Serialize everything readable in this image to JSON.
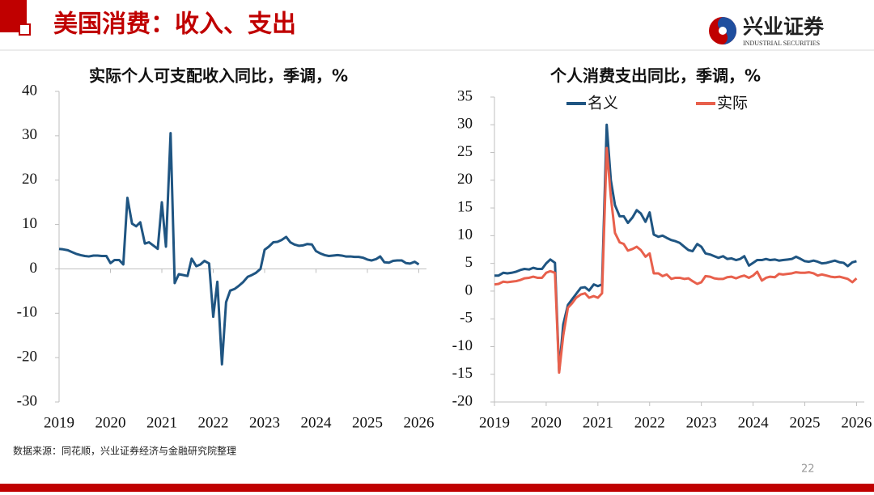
{
  "header": {
    "title": "美国消费：收入、支出"
  },
  "logo": {
    "name": "兴业证券",
    "subtitle": "INDUSTRIAL SECURITIES"
  },
  "source": "数据来源：同花顺，兴业证券经济与金融研究院整理",
  "page_number": "22",
  "chart_data": [
    {
      "type": "line",
      "title": "实际个人可支配收入同比，季调，%",
      "color": "#1f5582",
      "zero_line": true,
      "xlim": [
        2019,
        2026.15
      ],
      "xticks": [
        2019,
        2020,
        2021,
        2022,
        2023,
        2024,
        2025,
        2026
      ],
      "ylim": [
        -30,
        40
      ],
      "yticks": [
        -30,
        -20,
        -10,
        0,
        10,
        20,
        30,
        40
      ],
      "x": [
        2019,
        2019.08,
        2019.17,
        2019.25,
        2019.33,
        2019.42,
        2019.5,
        2019.58,
        2019.67,
        2019.75,
        2019.83,
        2019.92,
        2020,
        2020.08,
        2020.17,
        2020.25,
        2020.33,
        2020.42,
        2020.5,
        2020.58,
        2020.67,
        2020.75,
        2020.83,
        2020.92,
        2021,
        2021.08,
        2021.17,
        2021.25,
        2021.33,
        2021.42,
        2021.5,
        2021.58,
        2021.67,
        2021.75,
        2021.83,
        2021.92,
        2022,
        2022.08,
        2022.17,
        2022.25,
        2022.33,
        2022.42,
        2022.5,
        2022.58,
        2022.67,
        2022.75,
        2022.83,
        2022.92,
        2023,
        2023.08,
        2023.17,
        2023.25,
        2023.33,
        2023.42,
        2023.5,
        2023.58,
        2023.67,
        2023.75,
        2023.83,
        2023.92,
        2024,
        2024.08,
        2024.17,
        2024.25,
        2024.33,
        2024.42,
        2024.5,
        2024.58,
        2024.67,
        2024.75,
        2024.83,
        2024.92,
        2025,
        2025.08,
        2025.17,
        2025.25,
        2025.33,
        2025.42,
        2025.5,
        2025.58,
        2025.67,
        2025.75,
        2025.83,
        2025.92,
        2026
      ],
      "values": [
        4.5,
        4.4,
        4.2,
        3.8,
        3.4,
        3.1,
        2.9,
        2.8,
        3.0,
        3.0,
        2.9,
        2.9,
        1.3,
        2.0,
        2.0,
        1.0,
        16.0,
        10.2,
        9.6,
        10.5,
        5.7,
        6.0,
        5.3,
        4.5,
        15.0,
        5.0,
        30.6,
        -3.2,
        -1.2,
        -1.4,
        -1.6,
        2.3,
        0.6,
        1.0,
        1.8,
        1.2,
        -10.8,
        -2.9,
        -21.5,
        -7.5,
        -4.9,
        -4.5,
        -3.8,
        -3.0,
        -1.8,
        -1.4,
        -0.9,
        0.0,
        4.3,
        5.0,
        6.0,
        6.1,
        6.5,
        7.2,
        6.0,
        5.5,
        5.2,
        5.3,
        5.6,
        5.5,
        4.0,
        3.5,
        3.1,
        2.9,
        3.0,
        3.1,
        3.0,
        2.8,
        2.8,
        2.7,
        2.7,
        2.5,
        2.1,
        1.9,
        2.2,
        2.8,
        1.5,
        1.4,
        1.8,
        1.9,
        1.9,
        1.3,
        1.2,
        1.6,
        1.0
      ]
    },
    {
      "type": "line",
      "title": "个人消费支出同比，季调，%",
      "zero_line": false,
      "xlim": [
        2019,
        2026.15
      ],
      "xticks": [
        2019,
        2020,
        2021,
        2022,
        2023,
        2024,
        2025,
        2026
      ],
      "ylim": [
        -20,
        35
      ],
      "yticks": [
        -20,
        -15,
        -10,
        -5,
        0,
        5,
        10,
        15,
        20,
        25,
        30,
        35
      ],
      "x": [
        2019,
        2019.08,
        2019.17,
        2019.25,
        2019.33,
        2019.42,
        2019.5,
        2019.58,
        2019.67,
        2019.75,
        2019.83,
        2019.92,
        2020,
        2020.08,
        2020.17,
        2020.25,
        2020.33,
        2020.42,
        2020.5,
        2020.58,
        2020.67,
        2020.75,
        2020.83,
        2020.92,
        2021,
        2021.08,
        2021.17,
        2021.25,
        2021.33,
        2021.42,
        2021.5,
        2021.58,
        2021.67,
        2021.75,
        2021.83,
        2021.92,
        2022,
        2022.08,
        2022.17,
        2022.25,
        2022.33,
        2022.42,
        2022.5,
        2022.58,
        2022.67,
        2022.75,
        2022.83,
        2022.92,
        2023,
        2023.08,
        2023.17,
        2023.25,
        2023.33,
        2023.42,
        2023.5,
        2023.58,
        2023.67,
        2023.75,
        2023.83,
        2023.92,
        2024,
        2024.08,
        2024.17,
        2024.25,
        2024.33,
        2024.42,
        2024.5,
        2024.58,
        2024.67,
        2024.75,
        2024.83,
        2024.92,
        2025,
        2025.08,
        2025.17,
        2025.25,
        2025.33,
        2025.42,
        2025.5,
        2025.58,
        2025.67,
        2025.75,
        2025.83,
        2025.92,
        2026
      ],
      "series": [
        {
          "name": "名义",
          "color": "#1f5582",
          "values": [
            2.8,
            2.8,
            3.3,
            3.2,
            3.3,
            3.5,
            3.8,
            4.0,
            3.9,
            4.2,
            4.0,
            4.0,
            5.0,
            5.7,
            5.1,
            -14.5,
            -6.0,
            -2.5,
            -1.5,
            -0.5,
            0.6,
            0.7,
            0.1,
            1.2,
            0.9,
            1.2,
            30.0,
            20.0,
            15.5,
            13.5,
            13.5,
            12.3,
            13.3,
            14.6,
            14.0,
            12.5,
            14.2,
            10.2,
            9.8,
            10.0,
            9.6,
            9.2,
            9.0,
            8.7,
            8.0,
            7.4,
            7.2,
            8.5,
            8.0,
            6.8,
            6.6,
            6.3,
            6.0,
            6.3,
            5.8,
            5.9,
            5.6,
            5.8,
            6.3,
            4.6,
            5.1,
            5.6,
            5.6,
            5.8,
            5.6,
            5.7,
            5.5,
            5.6,
            5.7,
            5.8,
            6.2,
            5.8,
            5.4,
            5.3,
            5.5,
            5.3,
            5.0,
            5.1,
            5.3,
            5.5,
            5.2,
            5.1,
            4.5,
            5.2,
            5.4
          ]
        },
        {
          "name": "实际",
          "color": "#e8604c",
          "values": [
            1.2,
            1.3,
            1.7,
            1.6,
            1.7,
            1.8,
            2.0,
            2.3,
            2.4,
            2.6,
            2.4,
            2.4,
            3.3,
            3.6,
            3.3,
            -14.7,
            -8.0,
            -3.0,
            -2.2,
            -1.2,
            -0.6,
            -0.4,
            -1.2,
            -0.9,
            -1.2,
            -0.4,
            25.8,
            17.0,
            10.5,
            8.8,
            8.5,
            7.3,
            7.6,
            8.0,
            7.4,
            6.2,
            6.8,
            3.2,
            3.2,
            2.7,
            3.0,
            2.2,
            2.4,
            2.4,
            2.2,
            2.3,
            1.8,
            1.3,
            1.6,
            2.7,
            2.6,
            2.3,
            2.2,
            2.2,
            2.5,
            2.6,
            2.3,
            2.6,
            2.8,
            2.4,
            2.8,
            3.5,
            1.9,
            2.4,
            2.6,
            2.5,
            3.1,
            3.0,
            3.1,
            3.2,
            3.4,
            3.3,
            3.3,
            3.4,
            3.2,
            2.8,
            3.0,
            2.8,
            2.6,
            2.5,
            2.6,
            2.4,
            2.2,
            1.6,
            2.3
          ]
        }
      ]
    }
  ]
}
